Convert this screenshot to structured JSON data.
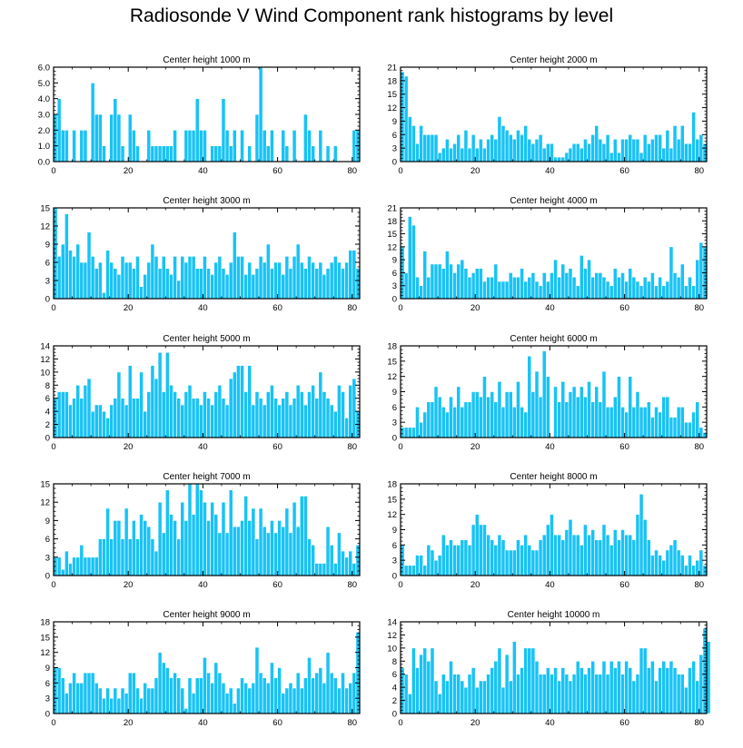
{
  "title": "Radiosonde V Wind Component rank histograms by level",
  "colors": {
    "bar": "#18c3f5",
    "bar_edge": "#ffffff",
    "axis": "#000000"
  },
  "chart_data": [
    {
      "type": "bar",
      "title": "Center height 1000 m",
      "xlim": [
        0,
        82
      ],
      "xticks": [
        0,
        20,
        40,
        60,
        80
      ],
      "ylim": [
        0,
        6
      ],
      "yticks": [
        0,
        1,
        2,
        3,
        4,
        5,
        6
      ],
      "ytick_labels": [
        "0.0",
        "1.0",
        "2.0",
        "3.0",
        "4.0",
        "5.0",
        "6.0"
      ],
      "values": [
        3,
        4,
        2,
        2,
        0,
        2,
        0,
        2,
        2,
        0,
        5,
        3,
        3,
        1,
        0,
        3,
        4,
        3,
        1,
        0,
        3,
        2,
        1,
        0,
        0,
        2,
        1,
        1,
        1,
        1,
        1,
        1,
        2,
        0,
        0,
        2,
        2,
        2,
        4,
        2,
        2,
        0,
        1,
        1,
        1,
        4,
        2,
        1,
        2,
        0,
        2,
        0,
        1,
        0,
        3,
        6,
        2,
        1,
        2,
        0,
        0,
        2,
        1,
        0,
        2,
        0,
        0,
        3,
        2,
        1,
        0,
        2,
        0,
        1,
        0,
        1,
        0,
        0,
        0,
        0,
        2,
        2
      ]
    },
    {
      "type": "bar",
      "title": "Center height 2000 m",
      "xlim": [
        0,
        82
      ],
      "xticks": [
        0,
        20,
        40,
        60,
        80
      ],
      "ylim": [
        0,
        21
      ],
      "yticks": [
        0,
        3,
        6,
        9,
        12,
        15,
        18,
        21
      ],
      "ytick_labels": [
        "0",
        "3",
        "6",
        "9",
        "12",
        "15",
        "18",
        "21"
      ],
      "values": [
        20,
        19,
        10,
        8,
        4,
        8,
        6,
        6,
        6,
        6,
        2,
        3,
        5,
        3,
        4,
        6,
        3,
        7,
        3,
        6,
        3,
        5,
        3,
        5,
        6,
        5,
        10,
        8,
        7,
        6,
        5,
        7,
        6,
        8,
        5,
        4,
        5,
        6,
        3,
        4,
        4,
        1,
        1,
        1,
        2,
        3,
        4,
        4,
        3,
        5,
        4,
        6,
        8,
        5,
        4,
        6,
        2,
        5,
        2,
        5,
        5,
        6,
        5,
        5,
        2,
        6,
        4,
        5,
        6,
        6,
        3,
        7,
        3,
        8,
        5,
        8,
        4,
        4,
        11,
        5,
        6,
        4
      ]
    },
    {
      "type": "bar",
      "title": "Center height 3000 m",
      "xlim": [
        0,
        82
      ],
      "xticks": [
        0,
        20,
        40,
        60,
        80
      ],
      "ylim": [
        0,
        15
      ],
      "yticks": [
        0,
        3,
        6,
        9,
        12,
        15
      ],
      "ytick_labels": [
        "0",
        "3",
        "6",
        "9",
        "12",
        "15"
      ],
      "values": [
        15,
        7,
        9,
        14,
        8,
        7,
        9,
        6,
        6,
        11,
        7,
        5,
        6,
        1,
        8,
        6,
        5,
        4,
        7,
        6,
        6,
        5,
        7,
        2,
        4,
        6,
        9,
        7,
        5,
        7,
        5,
        4,
        7,
        3,
        7,
        6,
        7,
        7,
        5,
        5,
        7,
        5,
        4,
        6,
        7,
        5,
        4,
        6,
        11,
        7,
        7,
        4,
        6,
        4,
        5,
        7,
        6,
        9,
        5,
        6,
        6,
        4,
        7,
        5,
        7,
        9,
        6,
        5,
        7,
        6,
        5,
        6,
        4,
        5,
        6,
        7,
        6,
        5,
        6,
        8,
        8,
        5
      ]
    },
    {
      "type": "bar",
      "title": "Center height 4000 m",
      "xlim": [
        0,
        82
      ],
      "xticks": [
        0,
        20,
        40,
        60,
        80
      ],
      "ylim": [
        0,
        21
      ],
      "yticks": [
        0,
        3,
        6,
        9,
        12,
        15,
        18,
        21
      ],
      "ytick_labels": [
        "0",
        "3",
        "6",
        "9",
        "12",
        "15",
        "18",
        "21"
      ],
      "values": [
        12,
        6,
        19,
        17,
        5,
        3,
        11,
        5,
        8,
        8,
        8,
        7,
        11,
        8,
        6,
        8,
        9,
        7,
        5,
        6,
        7,
        7,
        4,
        5,
        5,
        8,
        4,
        4,
        4,
        6,
        5,
        5,
        7,
        4,
        5,
        6,
        4,
        3,
        6,
        4,
        6,
        9,
        5,
        8,
        6,
        7,
        5,
        3,
        10,
        7,
        9,
        5,
        6,
        6,
        5,
        4,
        3,
        7,
        5,
        6,
        4,
        7,
        5,
        4,
        3,
        5,
        4,
        6,
        3,
        5,
        3,
        4,
        12,
        6,
        5,
        8,
        3,
        5,
        3,
        9,
        13,
        12
      ]
    },
    {
      "type": "bar",
      "title": "Center height 5000 m",
      "xlim": [
        0,
        82
      ],
      "xticks": [
        0,
        20,
        40,
        60,
        80
      ],
      "ylim": [
        0,
        14
      ],
      "yticks": [
        0,
        2,
        4,
        6,
        8,
        10,
        12,
        14
      ],
      "ytick_labels": [
        "0",
        "2",
        "4",
        "6",
        "8",
        "10",
        "12",
        "14"
      ],
      "values": [
        6,
        7,
        7,
        7,
        5,
        6,
        8,
        6,
        8,
        9,
        4,
        5,
        5,
        4,
        3,
        5,
        6,
        10,
        6,
        5,
        11,
        6,
        6,
        10,
        4,
        7,
        11,
        9,
        13,
        7,
        13,
        8,
        7,
        6,
        5,
        7,
        8,
        6,
        6,
        5,
        7,
        6,
        5,
        7,
        8,
        6,
        5,
        9,
        10,
        11,
        11,
        7,
        11,
        5,
        7,
        6,
        5,
        7,
        8,
        6,
        5,
        6,
        7,
        5,
        6,
        8,
        7,
        5,
        7,
        8,
        6,
        10,
        7,
        6,
        5,
        4,
        8,
        7,
        3,
        8,
        9,
        4
      ]
    },
    {
      "type": "bar",
      "title": "Center height 6000 m",
      "xlim": [
        0,
        82
      ],
      "xticks": [
        0,
        20,
        40,
        60,
        80
      ],
      "ylim": [
        0,
        18
      ],
      "yticks": [
        0,
        3,
        6,
        9,
        12,
        15,
        18
      ],
      "ytick_labels": [
        "0",
        "3",
        "6",
        "9",
        "12",
        "15",
        "18"
      ],
      "values": [
        2,
        2,
        2,
        2,
        6,
        3,
        5,
        7,
        7,
        10,
        8,
        6,
        5,
        8,
        6,
        10,
        6,
        7,
        7,
        9,
        9,
        8,
        12,
        8,
        9,
        7,
        11,
        6,
        9,
        9,
        6,
        11,
        6,
        5,
        16,
        9,
        13,
        8,
        17,
        12,
        0,
        10,
        7,
        11,
        7,
        9,
        10,
        8,
        10,
        8,
        11,
        7,
        10,
        7,
        13,
        6,
        6,
        8,
        12,
        6,
        5,
        12,
        6,
        9,
        6,
        6,
        7,
        4,
        6,
        5,
        8,
        8,
        4,
        4,
        6,
        6,
        3,
        3,
        5,
        7,
        2,
        1
      ]
    },
    {
      "type": "bar",
      "title": "Center height 7000 m",
      "xlim": [
        0,
        82
      ],
      "xticks": [
        0,
        20,
        40,
        60,
        80
      ],
      "ylim": [
        0,
        15
      ],
      "yticks": [
        0,
        3,
        6,
        9,
        12,
        15
      ],
      "ytick_labels": [
        "0",
        "3",
        "6",
        "9",
        "12",
        "15"
      ],
      "values": [
        3,
        3,
        1,
        4,
        2,
        3,
        3,
        5,
        3,
        3,
        3,
        3,
        6,
        6,
        11,
        6,
        9,
        9,
        6,
        11,
        6,
        9,
        6,
        10,
        9,
        8,
        6,
        4,
        12,
        7,
        14,
        10,
        9,
        6,
        12,
        9,
        15,
        10,
        15,
        14,
        12,
        9,
        12,
        10,
        7,
        12,
        7,
        14,
        8,
        8,
        9,
        13,
        9,
        11,
        6,
        11,
        8,
        7,
        9,
        7,
        9,
        8,
        11,
        7,
        12,
        8,
        13,
        13,
        6,
        5,
        2,
        2,
        2,
        8,
        5,
        2,
        7,
        4,
        3,
        4,
        2,
        5
      ]
    },
    {
      "type": "bar",
      "title": "Center height 8000 m",
      "xlim": [
        0,
        82
      ],
      "xticks": [
        0,
        20,
        40,
        60,
        80
      ],
      "ylim": [
        0,
        18
      ],
      "yticks": [
        0,
        3,
        6,
        9,
        12,
        15,
        18
      ],
      "ytick_labels": [
        "0",
        "3",
        "6",
        "9",
        "12",
        "15",
        "18"
      ],
      "values": [
        6,
        2,
        2,
        2,
        4,
        4,
        2,
        6,
        5,
        3,
        4,
        8,
        6,
        7,
        6,
        6,
        7,
        7,
        6,
        10,
        12,
        10,
        10,
        8,
        7,
        6,
        8,
        7,
        5,
        5,
        5,
        7,
        6,
        8,
        6,
        5,
        5,
        7,
        8,
        10,
        12,
        8,
        8,
        7,
        9,
        11,
        8,
        8,
        6,
        10,
        8,
        9,
        7,
        7,
        10,
        8,
        6,
        9,
        7,
        9,
        8,
        8,
        7,
        12,
        16,
        11,
        7,
        4,
        5,
        4,
        3,
        5,
        6,
        7,
        5,
        4,
        2,
        4,
        2,
        3,
        5,
        2
      ]
    },
    {
      "type": "bar",
      "title": "Center height 9000 m",
      "xlim": [
        0,
        82
      ],
      "xticks": [
        0,
        20,
        40,
        60,
        80
      ],
      "ylim": [
        0,
        18
      ],
      "yticks": [
        0,
        3,
        6,
        9,
        12,
        15,
        18
      ],
      "ytick_labels": [
        "0",
        "3",
        "6",
        "9",
        "12",
        "15",
        "18"
      ],
      "values": [
        9,
        9,
        7,
        4,
        6,
        8,
        6,
        6,
        8,
        8,
        8,
        6,
        5,
        3,
        5,
        3,
        5,
        3,
        5,
        4,
        8,
        8,
        5,
        3,
        6,
        5,
        5,
        7,
        12,
        10,
        9,
        7,
        8,
        7,
        5,
        1,
        7,
        4,
        7,
        7,
        11,
        8,
        6,
        10,
        8,
        6,
        4,
        5,
        2,
        5,
        7,
        6,
        5,
        6,
        13,
        8,
        7,
        6,
        10,
        7,
        9,
        4,
        5,
        6,
        5,
        8,
        5,
        7,
        11,
        7,
        8,
        9,
        6,
        12,
        8,
        7,
        5,
        8,
        5,
        6,
        8,
        16
      ]
    },
    {
      "type": "bar",
      "title": "Center height 10000 m",
      "xlim": [
        0,
        82
      ],
      "xticks": [
        0,
        20,
        40,
        60,
        80
      ],
      "ylim": [
        0,
        14
      ],
      "yticks": [
        0,
        2,
        4,
        6,
        8,
        10,
        12,
        14
      ],
      "ytick_labels": [
        "0",
        "2",
        "4",
        "6",
        "8",
        "10",
        "12",
        "14"
      ],
      "values": [
        7,
        6,
        3,
        10,
        7,
        9,
        10,
        8,
        10,
        5,
        3,
        6,
        5,
        8,
        6,
        6,
        5,
        4,
        6,
        7,
        4,
        5,
        5,
        6,
        7,
        8,
        10,
        4,
        9,
        5,
        11,
        6,
        7,
        10,
        10,
        10,
        8,
        6,
        6,
        7,
        6,
        7,
        5,
        7,
        6,
        5,
        6,
        8,
        7,
        6,
        7,
        8,
        6,
        6,
        8,
        6,
        8,
        7,
        8,
        6,
        8,
        7,
        5,
        6,
        10,
        10,
        7,
        8,
        5,
        7,
        8,
        7,
        8,
        7,
        6,
        6,
        4,
        7,
        8,
        5,
        9,
        13,
        11
      ]
    }
  ]
}
